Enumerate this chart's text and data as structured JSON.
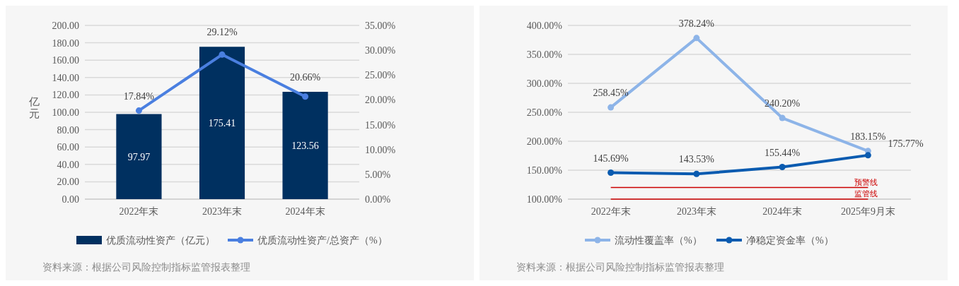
{
  "chart_data": [
    {
      "type": "bar",
      "categories": [
        "2022年末",
        "2023年末",
        "2024年末"
      ],
      "ylabel": "亿元",
      "series": [
        {
          "name": "优质流动性资产（亿元）",
          "color": "#003060",
          "values": [
            97.97,
            175.41,
            123.56
          ],
          "value_labels": [
            "97.97",
            "175.41",
            "123.56"
          ]
        },
        {
          "name": "优质流动性资产/总资产（%）",
          "type": "line",
          "axis": "y2",
          "color": "#4a7fe0",
          "values": [
            17.84,
            29.12,
            20.66
          ],
          "value_labels": [
            "17.84%",
            "29.12%",
            "20.66%"
          ]
        }
      ],
      "ylim": [
        0,
        200
      ],
      "yticks": [
        {
          "value": 0,
          "label": "0.00"
        },
        {
          "value": 20,
          "label": "20.00"
        },
        {
          "value": 40,
          "label": "40.00"
        },
        {
          "value": 60,
          "label": "60.00"
        },
        {
          "value": 80,
          "label": "80.00"
        },
        {
          "value": 100,
          "label": "100.00"
        },
        {
          "value": 120,
          "label": "120.00"
        },
        {
          "value": 140,
          "label": "140.00"
        },
        {
          "value": 160,
          "label": "160.00"
        },
        {
          "value": 180,
          "label": "180.00"
        },
        {
          "value": 200,
          "label": "200.00"
        }
      ],
      "y2lim": [
        0,
        35
      ],
      "y2ticks": [
        {
          "value": 0,
          "label": "0.00%"
        },
        {
          "value": 5,
          "label": "5.00%"
        },
        {
          "value": 10,
          "label": "10.00%"
        },
        {
          "value": 15,
          "label": "15.00%"
        },
        {
          "value": 20,
          "label": "20.00%"
        },
        {
          "value": 25,
          "label": "25.00%"
        },
        {
          "value": 30,
          "label": "30.00%"
        },
        {
          "value": 35,
          "label": "35.00%"
        }
      ],
      "grid": "y",
      "legend": "bottom",
      "marker": "circle",
      "annotations": [
        "资料来源：根据公司风险控制指标监管报表整理"
      ]
    },
    {
      "type": "line",
      "categories": [
        "2022年末",
        "2023年末",
        "2024年末",
        "2025年9月末"
      ],
      "series": [
        {
          "name": "流动性覆盖率（%）",
          "color": "#8db4e8",
          "values": [
            258.45,
            378.24,
            240.2,
            183.15
          ],
          "value_labels": [
            "258.45%",
            "378.24%",
            "240.20%",
            "183.15%"
          ]
        },
        {
          "name": "净稳定资金率（%）",
          "color": "#0a5bb0",
          "values": [
            145.69,
            143.53,
            155.44,
            175.77
          ],
          "value_labels": [
            "145.69%",
            "143.53%",
            "155.44%",
            "175.77%"
          ]
        }
      ],
      "ylim": [
        100,
        400
      ],
      "yticks": [
        {
          "value": 100,
          "label": "100.00%"
        },
        {
          "value": 150,
          "label": "150.00%"
        },
        {
          "value": 200,
          "label": "200.00%"
        },
        {
          "value": 250,
          "label": "250.00%"
        },
        {
          "value": 300,
          "label": "300.00%"
        },
        {
          "value": 350,
          "label": "350.00%"
        },
        {
          "value": 400,
          "label": "400.00%"
        }
      ],
      "ref_lines": [
        {
          "axis": "y",
          "value": 120,
          "label": "预警线",
          "color": "#cc0000"
        },
        {
          "axis": "y",
          "value": 100,
          "label": "监管线",
          "color": "#cc0000"
        }
      ],
      "grid": "y",
      "legend": "bottom",
      "marker": "circle",
      "annotations": [
        "资料来源：根据公司风险控制指标监管报表整理"
      ]
    }
  ]
}
